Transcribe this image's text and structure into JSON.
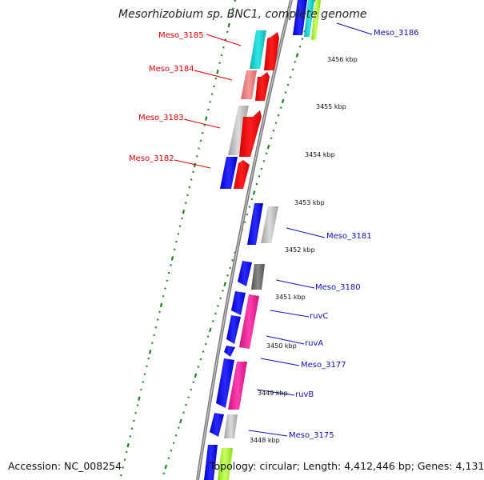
{
  "title": "Mesorhizobium sp. BNC1, complete genome",
  "accession": "Accession: NC_008254",
  "topology": "Topology: circular; Length: 4,412,446 bp; Genes: 4,131",
  "kbp_labels": [
    "3456 kbp",
    "3455 kbp",
    "3454 kbp",
    "3453 kbp",
    "3452 kbp",
    "3451 kbp",
    "3450 kbp",
    "3449 kbp",
    "3448 kbp"
  ],
  "colors": {
    "forward_label": "#e00000",
    "reverse_label": "#1010c0",
    "backbone": "#888888",
    "tick": "#1a8a1a",
    "blue": "#1010ee",
    "red": "#ff0000",
    "cyan": "#1ad0d0",
    "salmon": "#f08080",
    "silver": "#bbbbbb",
    "gray": "#707070",
    "pink": "#f01a9a",
    "lime": "#aaff33"
  },
  "gene_labels": {
    "meso_3185": "Meso_3185",
    "meso_3184": "Meso_3184",
    "meso_3183": "Meso_3183",
    "meso_3182": "Meso_3182",
    "meso_3186": "Meso_3186",
    "meso_3181": "Meso_3181",
    "meso_3180": "Meso_3180",
    "ruvc": "ruvC",
    "ruva": "ruvA",
    "meso_3177": "Meso_3177",
    "ruvb": "ruvB",
    "meso_3175": "Meso_3175"
  }
}
